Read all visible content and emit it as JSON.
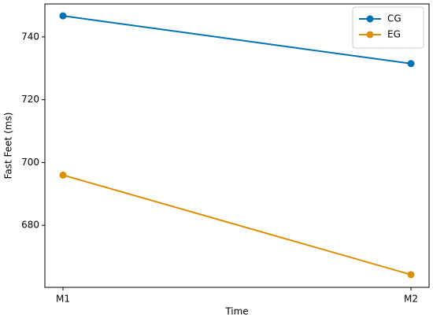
{
  "chart_data": {
    "type": "line",
    "x_label": "Time",
    "y_label": "Fast Feet (ms)",
    "categories": [
      "M1",
      "M2"
    ],
    "series": [
      {
        "name": "CG",
        "color": "#0173b2",
        "values": [
          746.7,
          731.5
        ]
      },
      {
        "name": "EG",
        "color": "#de8f05",
        "values": [
          696.0,
          664.3
        ]
      }
    ],
    "ylim": [
      660.25,
      750.5
    ],
    "yticks": [
      680,
      700,
      720,
      740
    ],
    "legend": "upper right",
    "grid": false
  }
}
